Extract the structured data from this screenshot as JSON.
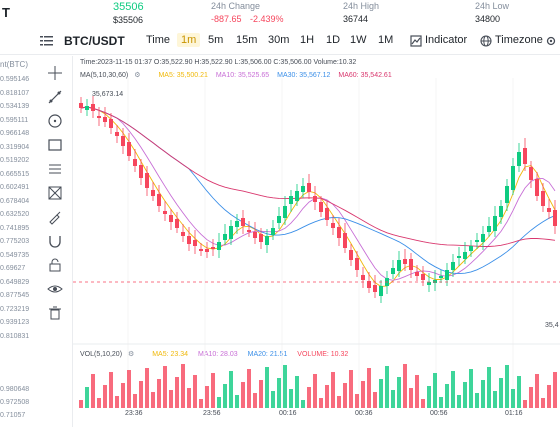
{
  "header": {
    "pair_short": "T",
    "last_price": "35506",
    "last_price_sub": "$35506",
    "change_label": "24h Change",
    "change_value": "-887.65",
    "change_pct": "-2.439%",
    "high_label": "24h High",
    "high_value": "36744",
    "low_label": "24h Low",
    "low_value": "34800"
  },
  "toolbar": {
    "symbol": "BTC/USDT",
    "time_label": "Time",
    "intervals": [
      "1m",
      "5m",
      "15m",
      "30m",
      "1H",
      "1D",
      "1W",
      "1M"
    ],
    "active_interval": "1m",
    "indicator_label": "Indicator",
    "timezone_label": "Timezone"
  },
  "legend": {
    "ohlc": "Time:2023-11-15 01:37  O:35,522.90  H:35,522.90  L:35,506.00  C:35,506.00  Volume:10.32",
    "ma_title": "MA(5,10,30,60)",
    "ma5": "MA5: 35,500.21",
    "ma10": "MA10: 35,525.65",
    "ma30": "MA30: 35,567.12",
    "ma60": "MA60: 35,542.61",
    "high_marker": "35,673.14",
    "low_marker": "35,4",
    "vol_title": "VOL(5,10,20)",
    "vol_ma5": "MA5: 23.34",
    "vol_ma10": "MA10: 28.03",
    "vol_ma20": "MA20: 21.51",
    "vol_volume": "VOLUME: 10.32"
  },
  "price_axis_title": "nt(BTC)",
  "left_axis_labels": [
    "0.595146",
    "0.818107",
    "0.534139",
    "0.595111",
    "0.966148",
    "0.319904",
    "0.519202",
    "0.665515",
    "0.602491",
    "0.678404",
    "0.632520",
    "0.741895",
    "0.775203",
    "0.549735",
    "0.69627",
    "0.649829",
    "0.877545",
    "0.723219",
    "0.939123",
    "0.810831"
  ],
  "vol_axis_labels": [
    "0.980648",
    "0.972508",
    "0.71057"
  ],
  "time_labels": [
    "23:36",
    "23:56",
    "00:16",
    "00:36",
    "00:56",
    "01:16"
  ],
  "colors": {
    "up": "#0ecb81",
    "down": "#f6465d",
    "ma5": "#f0b90b",
    "ma10": "#c86fd6",
    "ma30": "#3b8fe8",
    "ma60": "#d9376e",
    "accent": "#c99400"
  },
  "icons": {
    "menu": "hamburger-menu-icon",
    "indicator": "indicator-icon",
    "timezone": "globe-icon",
    "settings": "gear-icon"
  }
}
